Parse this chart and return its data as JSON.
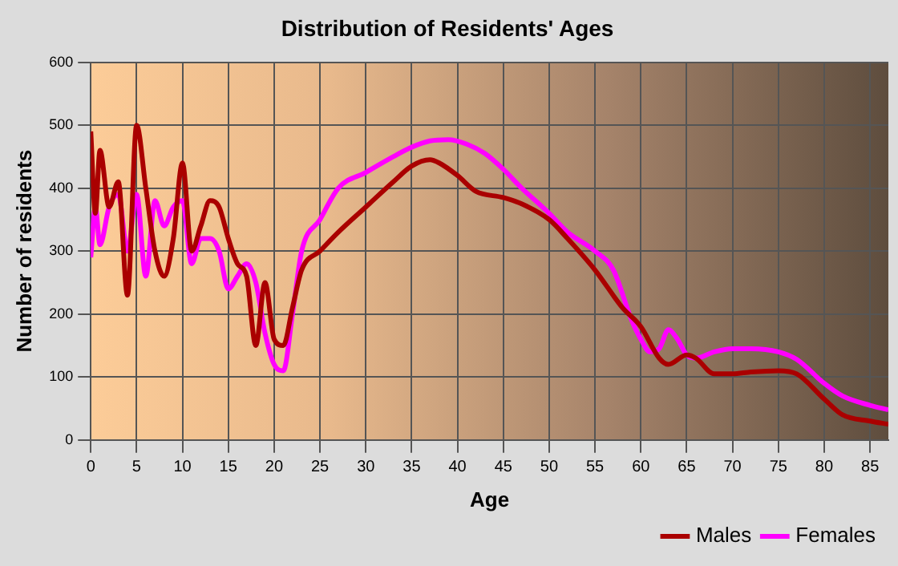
{
  "chart_data": {
    "type": "line",
    "title": "Distribution of Residents' Ages",
    "xlabel": "Age",
    "ylabel": "Number of residents",
    "xlim": [
      0,
      87
    ],
    "xticks": [
      0,
      5,
      10,
      15,
      20,
      25,
      30,
      35,
      40,
      45,
      50,
      55,
      60,
      65,
      70,
      75,
      80,
      85
    ],
    "ylim": [
      0,
      600
    ],
    "yticks": [
      0,
      100,
      200,
      300,
      400,
      500,
      600
    ],
    "grid": true,
    "legend": "bottom right",
    "marker": "none",
    "line_style": "solid",
    "series": [
      {
        "name": "Males",
        "color": "#aa0000",
        "x": [
          0,
          0.5,
          1,
          2,
          3,
          4,
          5,
          6,
          7,
          8,
          9,
          10,
          11,
          12,
          13,
          14,
          15,
          16,
          17,
          18,
          19,
          20,
          21,
          22,
          23,
          25,
          27,
          30,
          33,
          35,
          37,
          38,
          40,
          42,
          45,
          47,
          50,
          52,
          55,
          58,
          60,
          62,
          63,
          65,
          66,
          68,
          70,
          72,
          75,
          77,
          80,
          82,
          85,
          87
        ],
        "values": [
          490,
          360,
          460,
          370,
          410,
          230,
          500,
          400,
          300,
          260,
          320,
          440,
          300,
          340,
          380,
          370,
          320,
          280,
          260,
          150,
          250,
          160,
          150,
          210,
          270,
          300,
          330,
          370,
          410,
          435,
          445,
          440,
          420,
          395,
          385,
          375,
          350,
          320,
          270,
          210,
          180,
          130,
          120,
          135,
          130,
          105,
          105,
          108,
          110,
          105,
          65,
          40,
          30,
          25
        ]
      },
      {
        "name": "Females",
        "color": "#ff00ff",
        "x": [
          0,
          0.5,
          1,
          2,
          3,
          4,
          5,
          6,
          7,
          8,
          9,
          10,
          11,
          12,
          13,
          14,
          15,
          16,
          17,
          18,
          19,
          20,
          21,
          22,
          23,
          25,
          27,
          30,
          33,
          35,
          37,
          39,
          41,
          43,
          45,
          47,
          50,
          52,
          55,
          57,
          59,
          60,
          61,
          62,
          63,
          64,
          65,
          66,
          68,
          70,
          72,
          75,
          77,
          80,
          82,
          85,
          87
        ],
        "values": [
          290,
          370,
          310,
          370,
          390,
          300,
          390,
          260,
          380,
          340,
          370,
          380,
          280,
          320,
          320,
          300,
          240,
          260,
          280,
          250,
          170,
          120,
          110,
          200,
          300,
          350,
          400,
          425,
          450,
          465,
          475,
          477,
          470,
          455,
          430,
          400,
          360,
          330,
          300,
          270,
          190,
          160,
          140,
          145,
          175,
          160,
          135,
          130,
          140,
          145,
          145,
          140,
          128,
          90,
          70,
          55,
          48
        ]
      }
    ]
  }
}
